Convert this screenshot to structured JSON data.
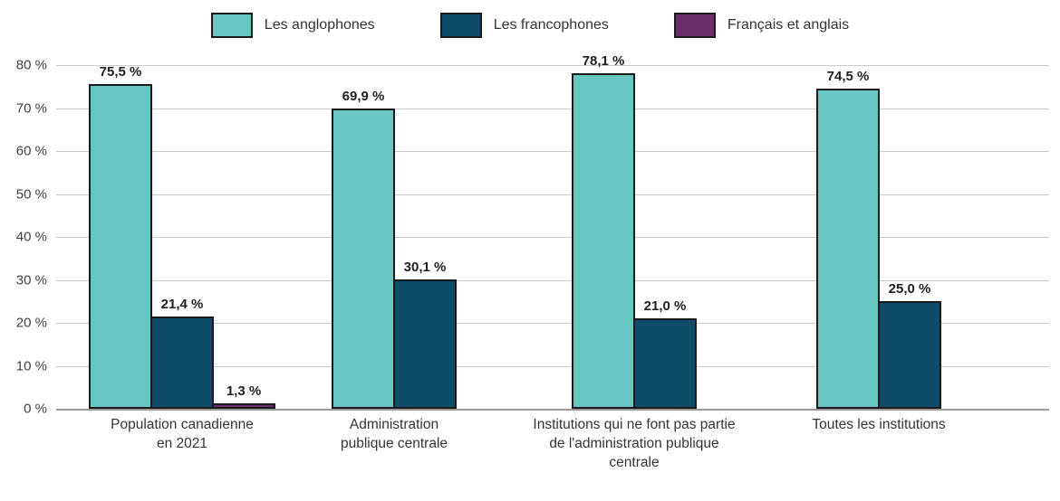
{
  "chart_data": {
    "type": "bar",
    "title": "",
    "legend_position": "top",
    "grid": true,
    "ylim": [
      0,
      80
    ],
    "ytick_step": 10,
    "ytick_suffix": " %",
    "categories": [
      "Population canadienne en 2021",
      "Administration publique centrale",
      "Institutions qui ne font pas partie de l'administration publique centrale",
      "Toutes les institutions"
    ],
    "series": [
      {
        "name": "Les anglophones",
        "color": "#68C6C0",
        "values": [
          75.5,
          69.9,
          78.1,
          74.5
        ],
        "value_labels": [
          "75,5 %",
          "69,9 %",
          "78,1 %",
          "74,5 %"
        ]
      },
      {
        "name": "Les francophones",
        "color": "#0E4C6A",
        "values": [
          21.4,
          30.1,
          21.0,
          25.0
        ],
        "value_labels": [
          "21,4 %",
          "30,1 %",
          "21,0 %",
          "25,0 %"
        ]
      },
      {
        "name": "Français et anglais",
        "color": "#6B2D6B",
        "values": [
          1.3,
          null,
          null,
          null
        ],
        "value_labels": [
          "1,3 %",
          null,
          null,
          null
        ]
      }
    ]
  }
}
